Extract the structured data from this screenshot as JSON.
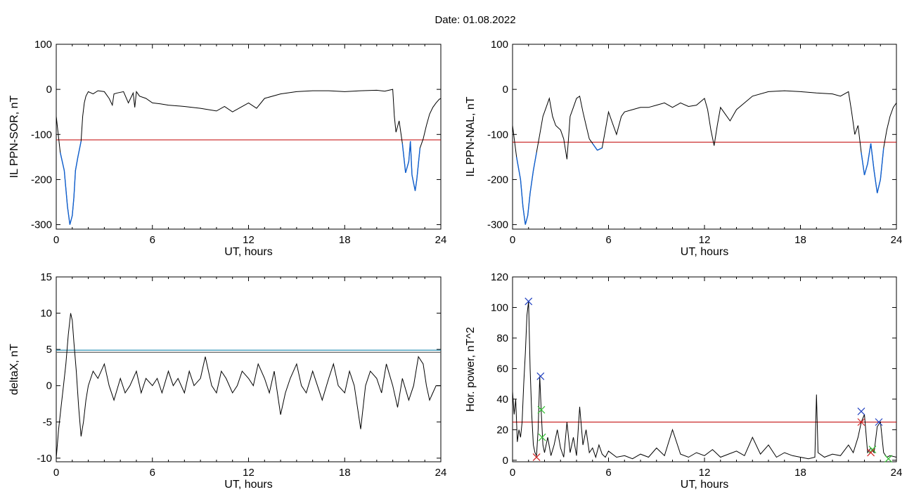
{
  "figure": {
    "title": "Date:  01.08.2022"
  },
  "chart_data": [
    {
      "type": "line",
      "panel": "top-left",
      "xlabel": "UT, hours",
      "ylabel": "IL PPN-SOR, nT",
      "xlim": [
        0,
        24
      ],
      "ylim": [
        -310,
        100
      ],
      "xticks": [
        0,
        6,
        12,
        18,
        24
      ],
      "yticks": [
        -300,
        -200,
        -100,
        0,
        100
      ],
      "grid": false,
      "threshold": {
        "value": -112,
        "color": "#c00000"
      },
      "highlight_below_color": "#1060d0",
      "series": [
        {
          "color": "#000000",
          "x": [
            0,
            0.25,
            0.5,
            0.7,
            0.85,
            1.0,
            1.1,
            1.2,
            1.35,
            1.55,
            1.65,
            1.75,
            1.85,
            2.0,
            2.3,
            2.6,
            3.0,
            3.3,
            3.5,
            3.6,
            3.8,
            4.2,
            4.5,
            4.8,
            4.9,
            5.0,
            5.2,
            5.6,
            6.0,
            6.5,
            7,
            8,
            9,
            10,
            10.5,
            11,
            11.5,
            12,
            12.5,
            13,
            14,
            15,
            16,
            17,
            18,
            19,
            20,
            20.5,
            21.0,
            21.1,
            21.2,
            21.4,
            21.6,
            21.8,
            22.0,
            22.1,
            22.2,
            22.4,
            22.5,
            22.7,
            22.9,
            23.1,
            23.3,
            23.5,
            23.7,
            23.9,
            24.0
          ],
          "y": [
            -60,
            -140,
            -180,
            -260,
            -300,
            -280,
            -240,
            -180,
            -150,
            -115,
            -60,
            -30,
            -15,
            -5,
            -10,
            -3,
            -5,
            -20,
            -35,
            -10,
            -8,
            -5,
            -30,
            -8,
            -40,
            -5,
            -15,
            -20,
            -30,
            -32,
            -35,
            -38,
            -42,
            -48,
            -38,
            -50,
            -40,
            -30,
            -42,
            -20,
            -10,
            -5,
            -3,
            -3,
            -5,
            -3,
            -2,
            -4,
            0,
            -60,
            -95,
            -70,
            -120,
            -185,
            -160,
            -115,
            -190,
            -225,
            -200,
            -130,
            -110,
            -80,
            -55,
            -40,
            -30,
            -22,
            -20
          ]
        }
      ]
    },
    {
      "type": "line",
      "panel": "top-right",
      "xlabel": "UT, hours",
      "ylabel": "IL PPN-NAL, nT",
      "xlim": [
        0,
        24
      ],
      "ylim": [
        -310,
        100
      ],
      "xticks": [
        0,
        6,
        12,
        18,
        24
      ],
      "yticks": [
        -300,
        -200,
        -100,
        0,
        100
      ],
      "grid": false,
      "threshold": {
        "value": -117,
        "color": "#c00000"
      },
      "highlight_below_color": "#1060d0",
      "series": [
        {
          "color": "#000000",
          "x": [
            0,
            0.25,
            0.5,
            0.65,
            0.8,
            0.95,
            1.1,
            1.3,
            1.5,
            1.7,
            1.9,
            2.1,
            2.3,
            2.5,
            2.7,
            3.0,
            3.2,
            3.4,
            3.6,
            3.8,
            4.0,
            4.2,
            4.4,
            4.6,
            4.8,
            5.0,
            5.3,
            5.6,
            5.8,
            6.0,
            6.2,
            6.5,
            6.8,
            7.0,
            7.5,
            8,
            8.5,
            9,
            9.5,
            10,
            10.5,
            11,
            11.5,
            12.0,
            12.2,
            12.4,
            12.6,
            12.8,
            13.0,
            13.3,
            13.6,
            14,
            14.5,
            15,
            16,
            17,
            18,
            19,
            20,
            20.5,
            21.0,
            21.2,
            21.4,
            21.6,
            21.8,
            22.0,
            22.2,
            22.4,
            22.6,
            22.8,
            23.0,
            23.2,
            23.4,
            23.6,
            23.8,
            24.0
          ],
          "y": [
            -80,
            -150,
            -200,
            -260,
            -300,
            -280,
            -230,
            -180,
            -140,
            -100,
            -60,
            -40,
            -20,
            -60,
            -80,
            -90,
            -110,
            -155,
            -60,
            -40,
            -20,
            -15,
            -50,
            -80,
            -110,
            -120,
            -135,
            -130,
            -90,
            -50,
            -70,
            -100,
            -60,
            -50,
            -45,
            -40,
            -40,
            -35,
            -30,
            -40,
            -30,
            -38,
            -35,
            -20,
            -45,
            -90,
            -125,
            -80,
            -40,
            -55,
            -70,
            -45,
            -30,
            -15,
            -5,
            -3,
            -5,
            -8,
            -10,
            -15,
            -5,
            -50,
            -100,
            -80,
            -140,
            -190,
            -165,
            -120,
            -180,
            -230,
            -200,
            -130,
            -90,
            -60,
            -40,
            -30
          ]
        }
      ]
    },
    {
      "type": "line",
      "panel": "bottom-left",
      "xlabel": "UT, hours",
      "ylabel": "deltaX, nT",
      "xlim": [
        0,
        24
      ],
      "ylim": [
        -10.5,
        15
      ],
      "xticks": [
        0,
        6,
        12,
        18,
        24
      ],
      "yticks": [
        -10,
        -5,
        0,
        5,
        10,
        15
      ],
      "grid": false,
      "threshold_lines": [
        {
          "value": 4.9,
          "color": "#1a8ab0"
        },
        {
          "value": 4.6,
          "color": "#606060"
        }
      ],
      "series": [
        {
          "color": "#000000",
          "x": [
            0,
            0.15,
            0.3,
            0.45,
            0.6,
            0.75,
            0.9,
            1.0,
            1.1,
            1.25,
            1.4,
            1.55,
            1.7,
            1.85,
            2.0,
            2.3,
            2.6,
            3.0,
            3.3,
            3.6,
            4.0,
            4.3,
            4.6,
            5.0,
            5.3,
            5.6,
            6.0,
            6.3,
            6.6,
            7.0,
            7.3,
            7.6,
            8.0,
            8.3,
            8.6,
            9.0,
            9.3,
            9.5,
            9.7,
            10.0,
            10.3,
            10.6,
            11.0,
            11.3,
            11.6,
            12.0,
            12.3,
            12.6,
            13.0,
            13.3,
            13.6,
            14.0,
            14.3,
            14.6,
            15.0,
            15.3,
            15.6,
            16.0,
            16.3,
            16.6,
            17.0,
            17.3,
            17.6,
            18.0,
            18.3,
            18.6,
            19.0,
            19.3,
            19.6,
            20.0,
            20.3,
            20.6,
            21.0,
            21.3,
            21.6,
            22.0,
            22.3,
            22.6,
            22.9,
            23.1,
            23.3,
            23.5,
            23.7,
            24.0
          ],
          "y": [
            -10,
            -6,
            -3,
            0,
            3,
            7,
            10,
            9,
            6,
            2,
            -3,
            -7,
            -5,
            -2,
            0,
            2,
            1,
            3,
            0,
            -2,
            1,
            -1,
            0,
            2,
            -1,
            1,
            0,
            1,
            -1,
            2,
            0,
            1,
            -1,
            2,
            0,
            1,
            4,
            2,
            0,
            -1,
            2,
            1,
            -1,
            0,
            2,
            1,
            0,
            3,
            1,
            -1,
            2,
            -4,
            -1,
            1,
            3,
            0,
            -1,
            2,
            0,
            -2,
            1,
            3,
            0,
            -1,
            2,
            0,
            -6,
            0,
            2,
            1,
            -1,
            3,
            0,
            -3,
            1,
            -2,
            0,
            4,
            3,
            0,
            -2,
            -1,
            0,
            0
          ]
        }
      ]
    },
    {
      "type": "line",
      "panel": "bottom-right",
      "xlabel": "UT, hours",
      "ylabel": "Hor. power, nT^2",
      "xlim": [
        0,
        24
      ],
      "ylim": [
        -1,
        120
      ],
      "xticks": [
        0,
        6,
        12,
        18,
        24
      ],
      "yticks": [
        0,
        20,
        40,
        60,
        80,
        100,
        120
      ],
      "grid": false,
      "threshold": {
        "value": 25,
        "color": "#c00000"
      },
      "series": [
        {
          "color": "#000000",
          "x": [
            0,
            0.1,
            0.2,
            0.3,
            0.4,
            0.5,
            0.6,
            0.7,
            0.8,
            0.9,
            1.0,
            1.1,
            1.2,
            1.3,
            1.4,
            1.5,
            1.6,
            1.7,
            1.8,
            1.9,
            2.0,
            2.2,
            2.4,
            2.6,
            2.8,
            3.0,
            3.2,
            3.4,
            3.6,
            3.8,
            4.0,
            4.2,
            4.4,
            4.6,
            4.8,
            5.0,
            5.2,
            5.4,
            5.6,
            5.8,
            6.0,
            6.5,
            7.0,
            7.5,
            8.0,
            8.5,
            9.0,
            9.5,
            10.0,
            10.5,
            11.0,
            11.5,
            12.0,
            12.5,
            13.0,
            13.5,
            14.0,
            14.5,
            15.0,
            15.5,
            16.0,
            16.5,
            17.0,
            17.5,
            18.0,
            18.5,
            18.9,
            19.0,
            19.1,
            19.5,
            20.0,
            20.5,
            21.0,
            21.3,
            21.6,
            21.8,
            22.0,
            22.2,
            22.4,
            22.6,
            22.8,
            23.0,
            23.2,
            23.4,
            23.6,
            24.0
          ],
          "y": [
            45,
            30,
            40,
            12,
            20,
            15,
            25,
            50,
            70,
            95,
            104,
            60,
            30,
            10,
            5,
            3,
            20,
            55,
            30,
            10,
            5,
            15,
            3,
            10,
            20,
            8,
            2,
            25,
            5,
            15,
            3,
            35,
            10,
            20,
            5,
            8,
            2,
            10,
            4,
            2,
            6,
            2,
            3,
            1,
            4,
            2,
            8,
            3,
            20,
            4,
            2,
            5,
            3,
            7,
            2,
            4,
            6,
            3,
            15,
            4,
            10,
            2,
            5,
            3,
            2,
            1,
            2,
            43,
            5,
            2,
            4,
            3,
            10,
            5,
            15,
            25,
            30,
            5,
            8,
            5,
            22,
            25,
            5,
            2,
            3,
            2
          ]
        }
      ],
      "markers": [
        {
          "x": 1.0,
          "y": 104,
          "color": "#2040c0"
        },
        {
          "x": 1.75,
          "y": 55,
          "color": "#2040c0"
        },
        {
          "x": 1.8,
          "y": 33,
          "color": "#30c030"
        },
        {
          "x": 1.85,
          "y": 15,
          "color": "#30c030"
        },
        {
          "x": 1.5,
          "y": 2,
          "color": "#d02020"
        },
        {
          "x": 21.8,
          "y": 32,
          "color": "#2040c0"
        },
        {
          "x": 21.8,
          "y": 25,
          "color": "#d02020"
        },
        {
          "x": 22.5,
          "y": 7,
          "color": "#30c030"
        },
        {
          "x": 22.4,
          "y": 5,
          "color": "#d02020"
        },
        {
          "x": 22.9,
          "y": 25,
          "color": "#2040c0"
        },
        {
          "x": 23.5,
          "y": 1,
          "color": "#30c030"
        }
      ]
    }
  ]
}
